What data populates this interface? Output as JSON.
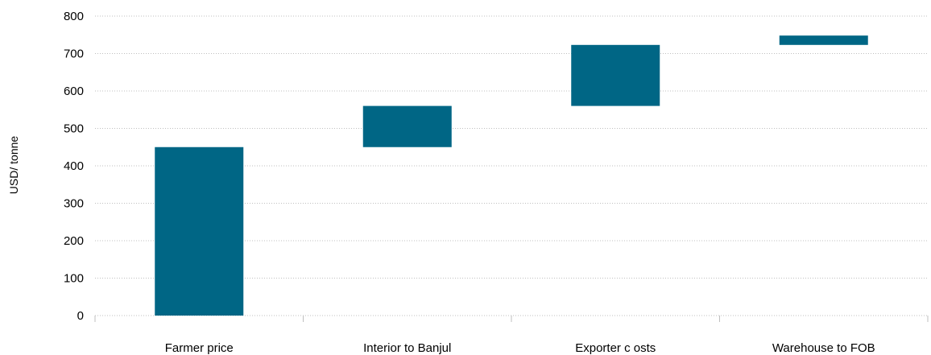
{
  "chart_data": {
    "type": "bar",
    "subtype": "waterfall",
    "categories": [
      "Farmer price",
      "Interior to Banjul",
      "Exporter c osts",
      "Warehouse to FOB"
    ],
    "ranges": [
      {
        "start": 0,
        "end": 450
      },
      {
        "start": 450,
        "end": 560
      },
      {
        "start": 560,
        "end": 723
      },
      {
        "start": 723,
        "end": 748
      }
    ],
    "values": [
      450,
      110,
      163,
      25
    ],
    "ylabel": "USD/ tonne",
    "ylim": [
      0,
      800
    ],
    "yticks": [
      0,
      100,
      200,
      300,
      400,
      500,
      600,
      700,
      800
    ],
    "grid": true,
    "bar_color": "#006685",
    "grid_color": "#bfbfbf"
  }
}
